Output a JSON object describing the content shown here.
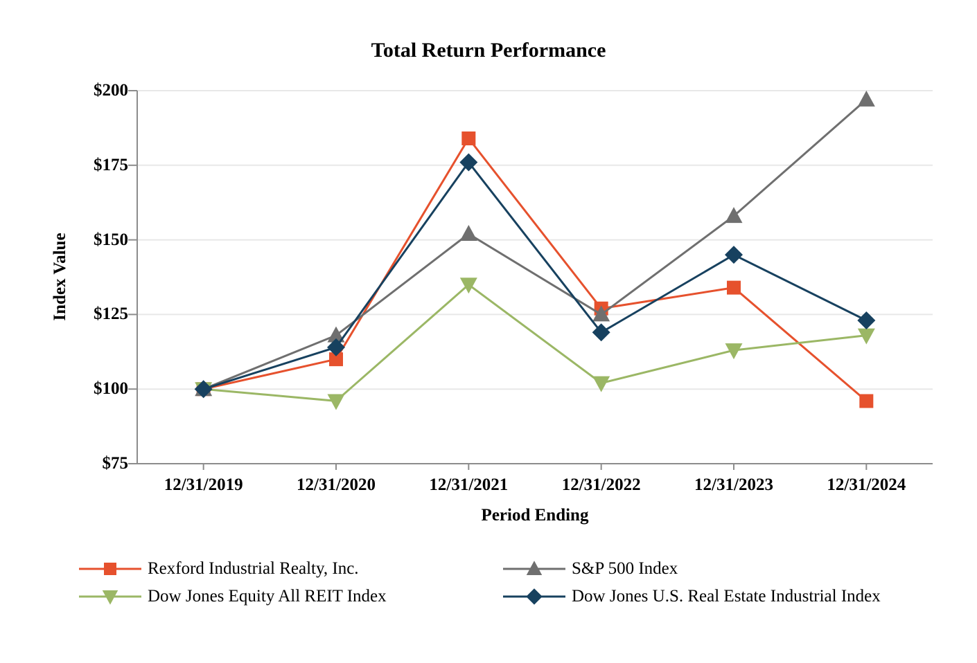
{
  "chart_data": {
    "type": "line",
    "title": "Total Return Performance",
    "xlabel": "Period Ending",
    "ylabel": "Index Value",
    "categories": [
      "12/31/2019",
      "12/31/2020",
      "12/31/2021",
      "12/31/2022",
      "12/31/2023",
      "12/31/2024"
    ],
    "series": [
      {
        "id": "rexford-industrial-realty",
        "name": "Rexford Industrial Realty, Inc.",
        "marker": "square",
        "color": "#E6512D",
        "values": [
          100,
          110,
          184,
          127,
          134,
          96
        ]
      },
      {
        "id": "sp-500-index",
        "name": "S&P 500 Index",
        "marker": "triangle-up",
        "color": "#6F6F6F",
        "values": [
          100,
          118,
          152,
          125,
          158,
          197
        ]
      },
      {
        "id": "dj-equity-all-reit-index",
        "name": "Dow Jones Equity All REIT Index",
        "marker": "triangle-down",
        "color": "#9BB765",
        "values": [
          100,
          96,
          135,
          102,
          113,
          118
        ]
      },
      {
        "id": "dj-us-real-estate-industrial-index",
        "name": "Dow Jones U.S. Real Estate Industrial Index",
        "marker": "diamond",
        "color": "#17415F",
        "values": [
          100,
          114,
          176,
          119,
          145,
          123
        ]
      }
    ],
    "ylim": [
      75,
      200
    ],
    "ytick_step": 25,
    "ytick_labels": [
      "$75",
      "$100",
      "$125",
      "$150",
      "$175",
      "$200"
    ],
    "value_prefix": "$",
    "grid": "horizontal",
    "legend_position": "bottom-two-columns"
  },
  "colors": {
    "background": "#FFFFFF",
    "axis": "#8C8C8C",
    "grid": "#E8E8E8",
    "text": "#000000"
  }
}
